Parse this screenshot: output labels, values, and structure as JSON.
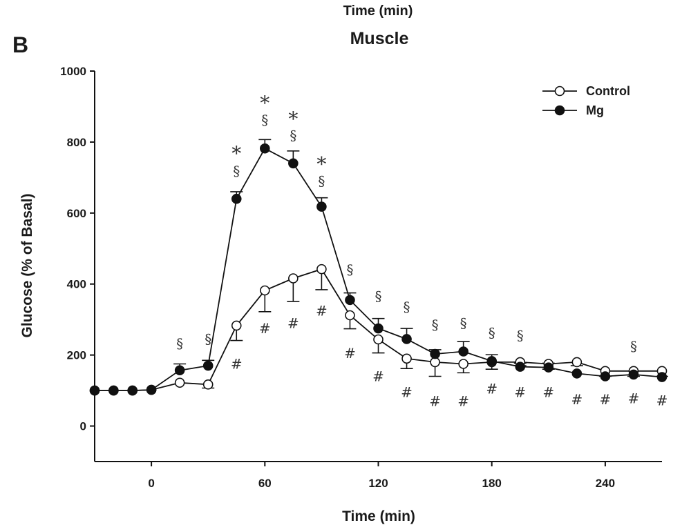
{
  "panel_letter": "B",
  "top_label": "Time (min)",
  "chart_data": {
    "type": "line",
    "title": "Muscle",
    "xlabel": "Time (min)",
    "ylabel": "Glucose (% of Basal)",
    "xlim": [
      -30,
      270
    ],
    "ylim": [
      -100,
      1000
    ],
    "xticks": [
      0,
      60,
      120,
      180,
      240
    ],
    "yticks": [
      0,
      200,
      400,
      600,
      800,
      1000
    ],
    "legend_position": "top-right",
    "x": [
      -30,
      -20,
      -10,
      0,
      15,
      30,
      45,
      60,
      75,
      90,
      105,
      120,
      135,
      150,
      165,
      180,
      195,
      210,
      225,
      240,
      255,
      270
    ],
    "series": [
      {
        "name": "Control",
        "marker": "open-circle",
        "values": [
          100,
          100,
          100,
          102,
          122,
          117,
          283,
          382,
          416,
          442,
          312,
          244,
          190,
          180,
          175,
          180,
          180,
          175,
          180,
          155,
          155,
          155
        ],
        "error": [
          0,
          0,
          0,
          0,
          0,
          10,
          42,
          60,
          65,
          58,
          38,
          38,
          28,
          40,
          25,
          20,
          10,
          15,
          10,
          15,
          15,
          15
        ]
      },
      {
        "name": "Mg",
        "marker": "filled-circle",
        "values": [
          100,
          100,
          100,
          102,
          157,
          170,
          640,
          782,
          740,
          618,
          355,
          275,
          245,
          203,
          210,
          183,
          167,
          165,
          148,
          140,
          145,
          138
        ],
        "error": [
          0,
          0,
          0,
          0,
          18,
          15,
          20,
          25,
          35,
          25,
          20,
          28,
          30,
          12,
          28,
          18,
          10,
          12,
          0,
          0,
          0,
          0
        ]
      }
    ],
    "annotations": [
      {
        "symbol": "§",
        "x": 15,
        "y": 232
      },
      {
        "symbol": "§",
        "x": 30,
        "y": 245
      },
      {
        "symbol": "§",
        "x": 45,
        "y": 718
      },
      {
        "symbol": "*",
        "x": 45,
        "y": 780
      },
      {
        "symbol": "§",
        "x": 60,
        "y": 862
      },
      {
        "symbol": "*",
        "x": 60,
        "y": 922
      },
      {
        "symbol": "§",
        "x": 75,
        "y": 818
      },
      {
        "symbol": "*",
        "x": 75,
        "y": 878
      },
      {
        "symbol": "§",
        "x": 90,
        "y": 690
      },
      {
        "symbol": "*",
        "x": 90,
        "y": 750
      },
      {
        "symbol": "§",
        "x": 105,
        "y": 440
      },
      {
        "symbol": "§",
        "x": 120,
        "y": 365
      },
      {
        "symbol": "§",
        "x": 135,
        "y": 335
      },
      {
        "symbol": "§",
        "x": 150,
        "y": 285
      },
      {
        "symbol": "§",
        "x": 165,
        "y": 290
      },
      {
        "symbol": "§",
        "x": 180,
        "y": 262
      },
      {
        "symbol": "§",
        "x": 195,
        "y": 255
      },
      {
        "symbol": "§",
        "x": 255,
        "y": 225
      },
      {
        "symbol": "#",
        "x": 45,
        "y": 175
      },
      {
        "symbol": "#",
        "x": 60,
        "y": 275
      },
      {
        "symbol": "#",
        "x": 75,
        "y": 290
      },
      {
        "symbol": "#",
        "x": 90,
        "y": 325
      },
      {
        "symbol": "#",
        "x": 105,
        "y": 205
      },
      {
        "symbol": "#",
        "x": 120,
        "y": 140
      },
      {
        "symbol": "#",
        "x": 135,
        "y": 95
      },
      {
        "symbol": "#",
        "x": 150,
        "y": 70
      },
      {
        "symbol": "#",
        "x": 165,
        "y": 70
      },
      {
        "symbol": "#",
        "x": 180,
        "y": 105
      },
      {
        "symbol": "#",
        "x": 195,
        "y": 95
      },
      {
        "symbol": "#",
        "x": 210,
        "y": 95
      },
      {
        "symbol": "#",
        "x": 225,
        "y": 75
      },
      {
        "symbol": "#",
        "x": 240,
        "y": 75
      },
      {
        "symbol": "#",
        "x": 255,
        "y": 78
      },
      {
        "symbol": "#",
        "x": 270,
        "y": 72
      }
    ]
  }
}
